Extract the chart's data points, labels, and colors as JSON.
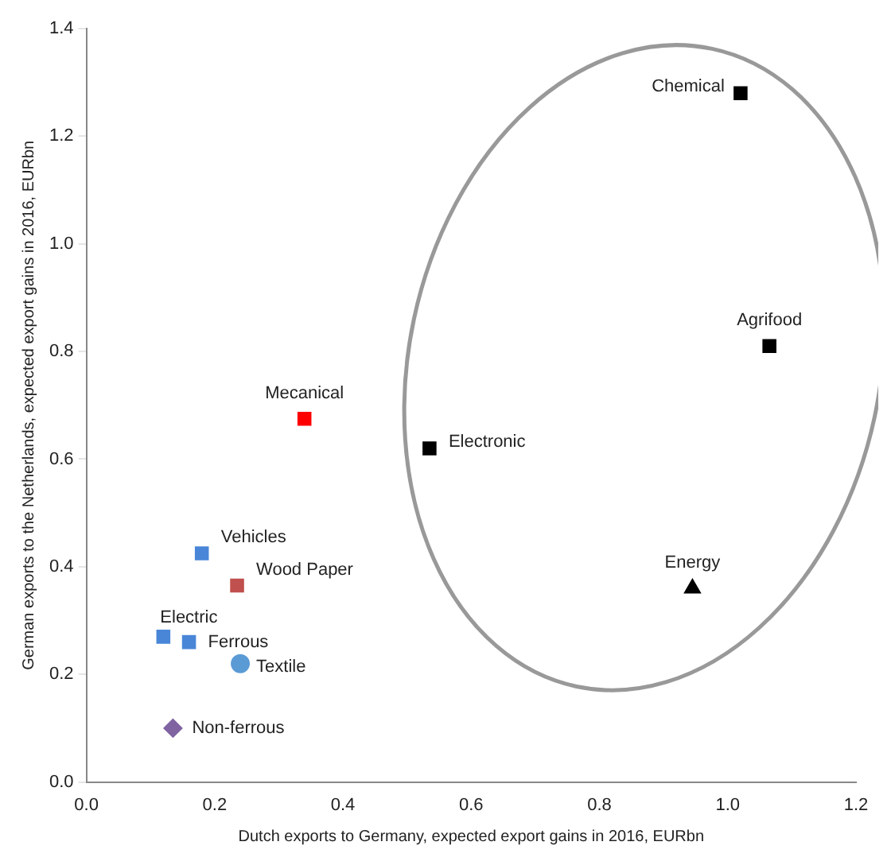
{
  "chart_data": {
    "type": "scatter",
    "xlabel": "Dutch exports to Germany, expected export gains in 2016, EURbn",
    "ylabel": "German exports to the Netherlands, expected export gains in 2016, EURbn",
    "xlim": [
      0,
      1.2
    ],
    "xticks": [
      {
        "value": 0,
        "label": "0.0"
      },
      {
        "value": 0.2,
        "label": "0.2"
      },
      {
        "value": 0.4,
        "label": "0.4"
      },
      {
        "value": 0.6,
        "label": "0.6"
      },
      {
        "value": 0.8,
        "label": "0.8"
      },
      {
        "value": 1,
        "label": "1.0"
      },
      {
        "value": 1.2,
        "label": "1.2"
      }
    ],
    "ylim": [
      0,
      1.4
    ],
    "yticks": [
      {
        "value": 0,
        "label": "0.0"
      },
      {
        "value": 0.2,
        "label": "0.2"
      },
      {
        "value": 0.4,
        "label": "0.4"
      },
      {
        "value": 0.6,
        "label": "0.6"
      },
      {
        "value": 0.8,
        "label": "0.8"
      },
      {
        "value": 1,
        "label": "1.0"
      },
      {
        "value": 1.2,
        "label": "1.2"
      },
      {
        "value": 1.4,
        "label": "1.4"
      }
    ],
    "grid": false,
    "legend": false,
    "series": [
      {
        "name": "Chemical",
        "color": "#000000",
        "marker": "square",
        "x": [
          1.02
        ],
        "values": [
          1.28
        ]
      },
      {
        "name": "Agrifood",
        "color": "#000000",
        "marker": "square",
        "x": [
          1.065
        ],
        "values": [
          0.81
        ]
      },
      {
        "name": "Electronic",
        "color": "#000000",
        "marker": "square",
        "x": [
          0.535
        ],
        "values": [
          0.62
        ]
      },
      {
        "name": "Energy",
        "color": "#000000",
        "marker": "triangle",
        "x": [
          0.945
        ],
        "values": [
          0.36
        ]
      },
      {
        "name": "Mecanical",
        "color": "#ff0000",
        "marker": "square",
        "x": [
          0.34
        ],
        "values": [
          0.675
        ]
      },
      {
        "name": "Vehicles",
        "color": "#4a86d8",
        "marker": "square",
        "x": [
          0.18
        ],
        "values": [
          0.425
        ]
      },
      {
        "name": "Wood Paper",
        "color": "#c0504d",
        "marker": "square",
        "x": [
          0.235
        ],
        "values": [
          0.365
        ]
      },
      {
        "name": "Electric",
        "color": "#4a86d8",
        "marker": "square",
        "x": [
          0.12
        ],
        "values": [
          0.27
        ]
      },
      {
        "name": "Ferrous",
        "color": "#4a86d8",
        "marker": "square",
        "x": [
          0.16
        ],
        "values": [
          0.26
        ]
      },
      {
        "name": "Textile",
        "color": "#5b9bd5",
        "marker": "circle",
        "x": [
          0.24
        ],
        "values": [
          0.22
        ]
      },
      {
        "name": "Non-ferrous",
        "color": "#8064a2",
        "marker": "diamond",
        "x": [
          0.135
        ],
        "values": [
          0.1
        ]
      }
    ]
  }
}
